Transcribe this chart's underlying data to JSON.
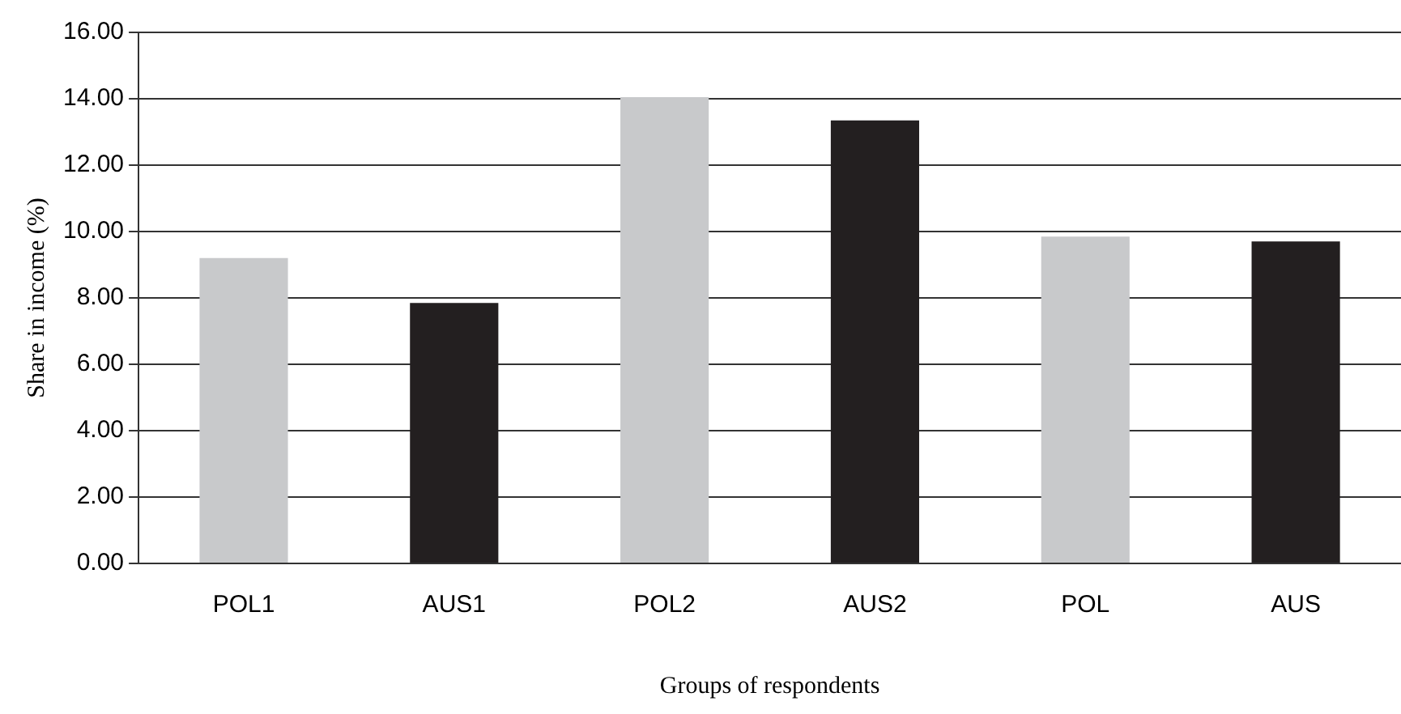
{
  "chart_data": {
    "type": "bar",
    "xlabel": "Groups of respondents",
    "ylabel": "Share in income (%)",
    "categories": [
      "POL1",
      "AUS1",
      "POL2",
      "AUS2",
      "POL",
      "AUS"
    ],
    "values": [
      9.2,
      7.85,
      14.05,
      13.35,
      9.85,
      9.7
    ],
    "colors": [
      "#c8c9cb",
      "#231f20",
      "#c8c9cb",
      "#231f20",
      "#c8c9cb",
      "#231f20"
    ],
    "ylim": [
      0,
      16
    ],
    "yticks": [
      {
        "value": 0,
        "label": "0.00"
      },
      {
        "value": 2,
        "label": "2.00"
      },
      {
        "value": 4,
        "label": "4.00"
      },
      {
        "value": 6,
        "label": "6.00"
      },
      {
        "value": 8,
        "label": "8.00"
      },
      {
        "value": 10,
        "label": "10.00"
      },
      {
        "value": 12,
        "label": "12.00"
      },
      {
        "value": 14,
        "label": "14.00"
      },
      {
        "value": 16,
        "label": "16.00"
      }
    ],
    "grid": "y",
    "legend": false
  }
}
